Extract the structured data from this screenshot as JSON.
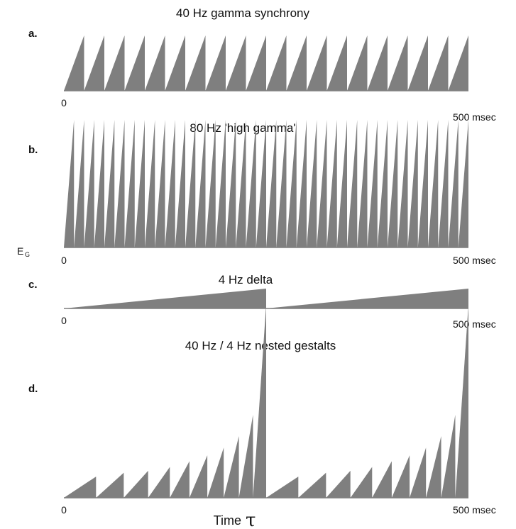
{
  "fill_color": "#7f7f7f",
  "y_axis_label": {
    "main": "E",
    "sub": "G"
  },
  "x_axis_label": {
    "word": "Time",
    "symbol": "τ"
  },
  "chart_data": [
    {
      "type": "area",
      "label": "a.",
      "title": "40 Hz gamma synchrony",
      "xlim": [
        0,
        500
      ],
      "tick_start": "0",
      "tick_end": "500 msec",
      "frequency_hz": 40,
      "cycles": 20,
      "waveform": "sawtooth",
      "peak": 1.0
    },
    {
      "type": "area",
      "label": "b.",
      "title": "80 Hz 'high gamma'",
      "xlim": [
        0,
        500
      ],
      "tick_start": "0",
      "tick_end": "500 msec",
      "frequency_hz": 80,
      "cycles": 40,
      "waveform": "sawtooth",
      "peak": 1.0
    },
    {
      "type": "area",
      "label": "c.",
      "title": "4 Hz delta",
      "xlim": [
        0,
        500
      ],
      "tick_start": "0",
      "tick_end": "500 msec",
      "frequency_hz": 4,
      "cycles": 2,
      "waveform": "sawtooth",
      "peak": 1.0
    },
    {
      "type": "area",
      "label": "d.",
      "title": "40 Hz / 4 Hz nested gestalts",
      "xlim": [
        0,
        500
      ],
      "tick_start": "0",
      "tick_end": "500 msec",
      "frequency_hz": 40,
      "envelope_hz": 4,
      "waveform": "nested-sawtooth",
      "groups": [
        {
          "peaks": [
            0.11,
            0.13,
            0.14,
            0.16,
            0.19,
            0.22,
            0.26,
            0.32,
            0.43,
            1.0
          ]
        },
        {
          "peaks": [
            0.11,
            0.13,
            0.14,
            0.16,
            0.19,
            0.22,
            0.26,
            0.32,
            0.43,
            1.0
          ]
        }
      ]
    }
  ]
}
